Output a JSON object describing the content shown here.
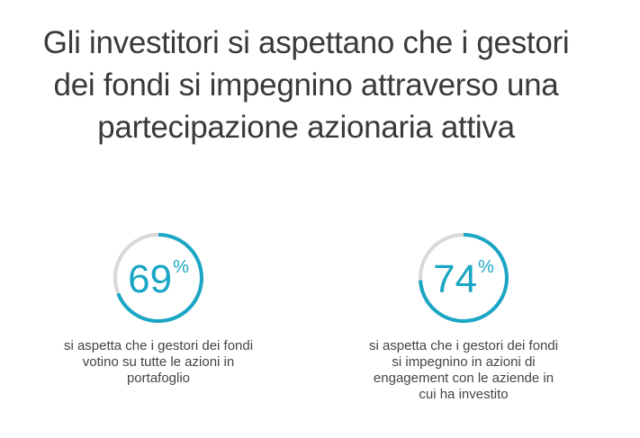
{
  "title": "Gli investitori si aspettano che i gestori dei fondi si impegnino attraverso una partecipazione azionaria attiva",
  "colors": {
    "accent": "#1aa6c4",
    "track": "#d9d9d9",
    "title": "#3a3a3a",
    "body": "#444444"
  },
  "stats": [
    {
      "value": "69",
      "unit": "%",
      "text": "si aspetta che i gestori dei fondi votino su tutte le azioni in portafoglio"
    },
    {
      "value": "74",
      "unit": "%",
      "text": "si aspetta che i gestori dei fondi si impegnino in azioni di engagement con le aziende in cui ha investito"
    }
  ],
  "chart_data": [
    {
      "type": "pie",
      "categories": [
        "",
        ""
      ],
      "values": [
        69,
        31
      ]
    },
    {
      "type": "pie",
      "categories": [
        "",
        ""
      ],
      "values": [
        74,
        26
      ]
    }
  ]
}
